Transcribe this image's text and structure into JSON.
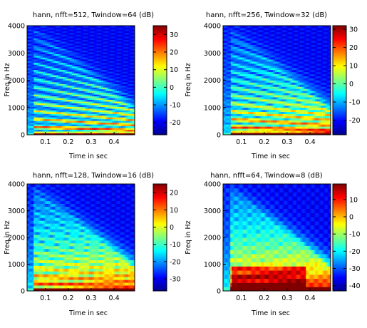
{
  "chart_data": [
    {
      "type": "heatmap",
      "title": "hann, nfft=512, Twindow=64 (dB)",
      "xlabel": "Time in sec",
      "ylabel": "Freq in Hz",
      "x_ticks": [
        "0.1",
        "0.2",
        "0.3",
        "0.4"
      ],
      "y_ticks": [
        "0",
        "1000",
        "2000",
        "3000",
        "4000"
      ],
      "xlim": [
        0.02,
        0.49
      ],
      "ylim": [
        0,
        4000
      ],
      "colorbar_ticks": [
        "30",
        "20",
        "10",
        "0",
        "-10",
        "-20"
      ],
      "colorbar_range": [
        -27,
        35
      ],
      "colormap": "jet",
      "resolution": "sharp",
      "harmonic_spacing_hz_at_start": 300,
      "harmonic_spacing_hz_at_end": 180
    },
    {
      "type": "heatmap",
      "title": "hann, nfft=256, Twindow=32 (dB)",
      "xlabel": "Time in sec",
      "ylabel": "Freq in Hz",
      "x_ticks": [
        "0.1",
        "0.2",
        "0.3",
        "0.4"
      ],
      "y_ticks": [
        "0",
        "1000",
        "2000",
        "3000",
        "4000"
      ],
      "xlim": [
        0.02,
        0.49
      ],
      "ylim": [
        0,
        4000
      ],
      "colorbar_ticks": [
        "30",
        "20",
        "10",
        "0",
        "-10",
        "-20"
      ],
      "colorbar_range": [
        -28,
        32
      ],
      "colormap": "jet",
      "resolution": "medium",
      "harmonic_spacing_hz_at_start": 300,
      "harmonic_spacing_hz_at_end": 180
    },
    {
      "type": "heatmap",
      "title": "hann, nfft=128, Twindow=16 (dB)",
      "xlabel": "Time in sec",
      "ylabel": "Freq in Hz",
      "x_ticks": [
        "0.1",
        "0.2",
        "0.3",
        "0.4"
      ],
      "y_ticks": [
        "0",
        "1000",
        "2000",
        "3000",
        "4000"
      ],
      "xlim": [
        0.02,
        0.49
      ],
      "ylim": [
        0,
        4000
      ],
      "colorbar_ticks": [
        "20",
        "10",
        "0",
        "-10",
        "-20",
        "-30"
      ],
      "colorbar_range": [
        -37,
        25
      ],
      "colormap": "jet",
      "resolution": "coarse",
      "harmonic_spacing_hz_at_start": 300,
      "harmonic_spacing_hz_at_end": 180
    },
    {
      "type": "heatmap",
      "title": "hann, nfft=64, Twindow=8 (dB)",
      "xlabel": "Time in sec",
      "ylabel": "Freq in Hz",
      "x_ticks": [
        "0.1",
        "0.2",
        "0.3",
        "0.4"
      ],
      "y_ticks": [
        "0",
        "1000",
        "2000",
        "3000",
        "4000"
      ],
      "xlim": [
        0.02,
        0.49
      ],
      "ylim": [
        0,
        4000
      ],
      "colorbar_ticks": [
        "10",
        "0",
        "-10",
        "-20",
        "-30",
        "-40"
      ],
      "colorbar_range": [
        -43,
        19
      ],
      "colormap": "jet",
      "resolution": "very coarse",
      "harmonic_spacing_hz_at_start": 300,
      "harmonic_spacing_hz_at_end": 180
    }
  ]
}
